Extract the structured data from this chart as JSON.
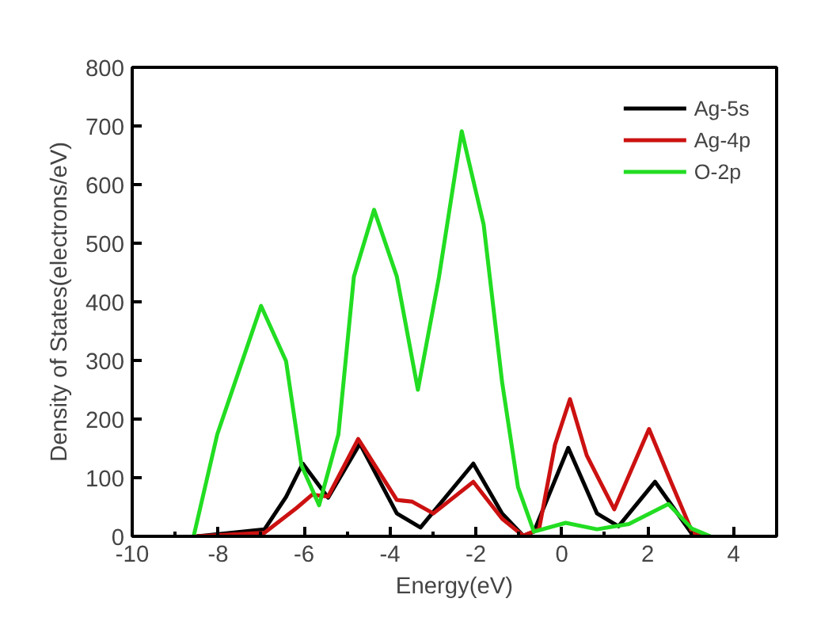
{
  "chart_data": {
    "type": "line",
    "xlabel": "Energy(eV)",
    "ylabel": "Density of States(electrons/eV)",
    "xlim": [
      -10,
      5
    ],
    "ylim": [
      0,
      800
    ],
    "xticks": [
      -10,
      {
        "value": -9,
        "label": null
      },
      -8,
      {
        "value": -7,
        "label": null
      },
      -6,
      {
        "value": -5,
        "label": null
      },
      -4,
      {
        "value": -3,
        "label": null
      },
      -2,
      {
        "value": -1,
        "label": null
      },
      0,
      {
        "value": 1,
        "label": null
      },
      2,
      {
        "value": 3,
        "label": null
      },
      4
    ],
    "yticks": [
      0,
      100,
      200,
      300,
      400,
      500,
      600,
      700,
      800
    ],
    "grid": false,
    "legend": "top right",
    "line_style": "solid",
    "marker": "none",
    "series": [
      {
        "name": "Ag-5s",
        "color": "#000000",
        "x": [
          -8.5,
          -6.92,
          -6.42,
          -6.03,
          -5.44,
          -4.7,
          -3.84,
          -3.29,
          -2.06,
          -1.39,
          -0.9,
          -0.65,
          0.15,
          0.82,
          1.32,
          2.17,
          3.03,
          3.25
        ],
        "values": [
          0,
          12,
          67,
          124,
          66,
          158,
          39,
          15,
          124,
          39,
          1,
          8,
          151,
          39,
          17,
          93,
          4,
          0
        ]
      },
      {
        "name": "Ag-4p",
        "color": "#cc1111",
        "x": [
          -8.5,
          -6.92,
          -6.18,
          -5.81,
          -5.44,
          -4.74,
          -3.84,
          -3.48,
          -2.99,
          -2.06,
          -1.39,
          -0.9,
          -0.53,
          -0.16,
          0.19,
          0.58,
          1.22,
          2.03,
          2.54,
          3.03,
          3.25
        ],
        "values": [
          0,
          6,
          48,
          71,
          68,
          166,
          62,
          59,
          39,
          93,
          30,
          1,
          12,
          156,
          234,
          138,
          46,
          183,
          93,
          8,
          0
        ]
      },
      {
        "name": "O-2p",
        "color": "#22dd22",
        "x": [
          -8.57,
          -8.02,
          -7.0,
          -6.42,
          -6.06,
          -5.65,
          -5.2,
          -4.84,
          -4.37,
          -3.84,
          -3.35,
          -2.86,
          -2.33,
          -1.82,
          -1.39,
          -1.02,
          -0.65,
          0.09,
          0.82,
          1.56,
          2.48,
          3.03,
          3.46
        ],
        "values": [
          0,
          174,
          393,
          299,
          121,
          53,
          174,
          443,
          557,
          443,
          250,
          442,
          691,
          532,
          263,
          84,
          8,
          23,
          12,
          21,
          55,
          13,
          0
        ]
      }
    ]
  }
}
